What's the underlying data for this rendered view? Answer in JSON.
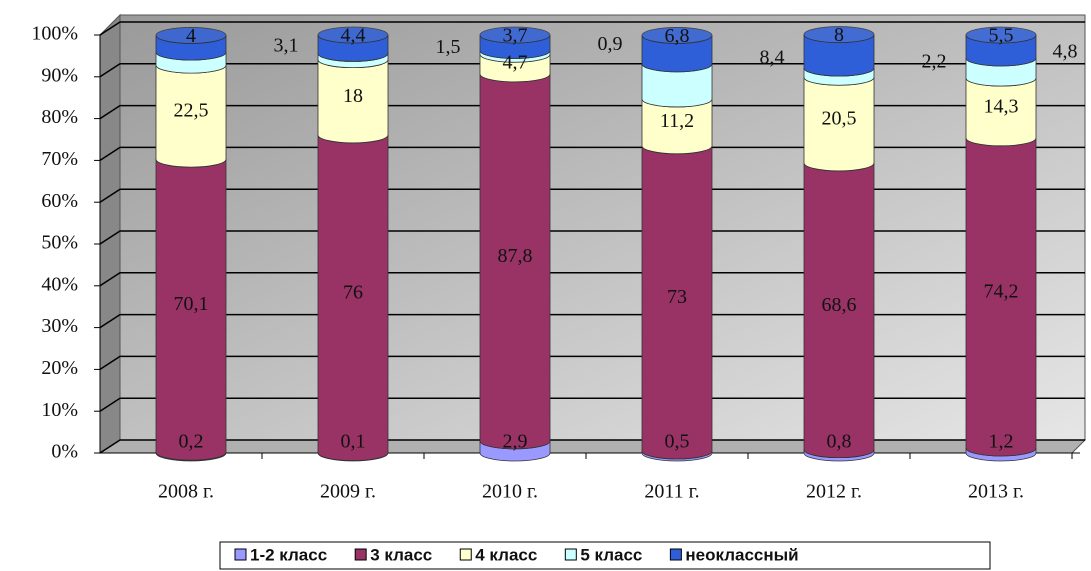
{
  "chart_data": {
    "type": "stacked-cylinder",
    "categories": [
      "2008 г.",
      "2009 г.",
      "2010 г.",
      "2011 г.",
      "2012 г.",
      "2013 г."
    ],
    "series": [
      {
        "name": "1-2 класс",
        "color": "#9999ff",
        "values": [
          0.2,
          0.1,
          2.9,
          0.5,
          0.8,
          1.2
        ],
        "value_labels": [
          "0,2",
          "0,1",
          "2,9",
          "0,5",
          "0,8",
          "1,2"
        ]
      },
      {
        "name": "3 класс",
        "color": "#993366",
        "values": [
          70.1,
          76,
          87.8,
          73,
          68.6,
          74.2
        ],
        "value_labels": [
          "70,1",
          "76",
          "87,8",
          "73",
          "68,6",
          "74,2"
        ]
      },
      {
        "name": "4 класс",
        "color": "#ffffcc",
        "values": [
          22.5,
          18,
          4.7,
          11.2,
          20.5,
          14.3
        ],
        "value_labels": [
          "22,5",
          "18",
          "4,7",
          "11,2",
          "20,5",
          "14,3"
        ]
      },
      {
        "name": "5 класс",
        "color": "#ccffff",
        "values": [
          3.1,
          1.5,
          0.9,
          8.4,
          2.2,
          4.8
        ],
        "value_labels": [
          "3,1",
          "1,5",
          "0,9",
          "8,4",
          "2,2",
          "4,8"
        ]
      },
      {
        "name": "неоклассный",
        "color": "#2f5fd8",
        "values": [
          4,
          4.4,
          3.7,
          6.8,
          8,
          5.5
        ],
        "value_labels": [
          "4",
          "4,4",
          "3,7",
          "6,8",
          "8",
          "5,5"
        ]
      }
    ],
    "ylim": [
      0,
      100
    ],
    "yticks": [
      {
        "value": 0,
        "label": "0%"
      },
      {
        "value": 10,
        "label": "10%"
      },
      {
        "value": 20,
        "label": "20%"
      },
      {
        "value": 30,
        "label": "30%"
      },
      {
        "value": 40,
        "label": "40%"
      },
      {
        "value": 50,
        "label": "50%"
      },
      {
        "value": 60,
        "label": "60%"
      },
      {
        "value": 70,
        "label": "70%"
      },
      {
        "value": 80,
        "label": "80%"
      },
      {
        "value": 90,
        "label": "90%"
      },
      {
        "value": 100,
        "label": "100%"
      }
    ],
    "grid": true
  }
}
